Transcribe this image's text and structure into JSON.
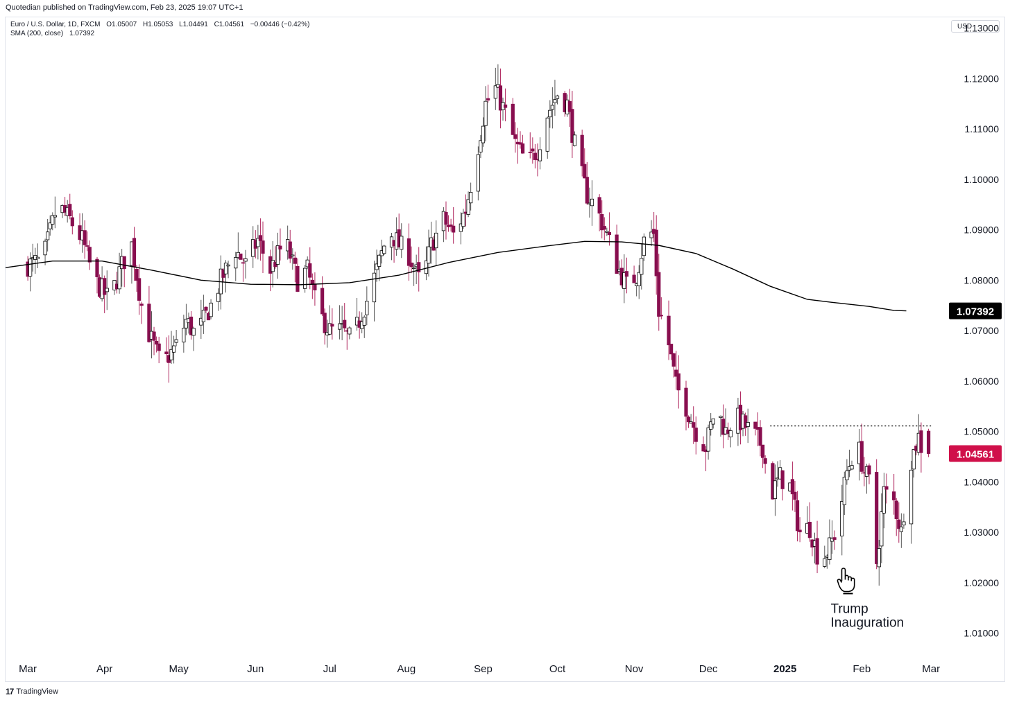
{
  "header": {
    "published": "Quotedian published on TradingView.com, Feb 23, 2025 19:07 UTC+1"
  },
  "symbol_line": {
    "name": "Euro / U.S. Dollar, 1D, FXCM",
    "open": "O1.05007",
    "high": "H1.05053",
    "low": "L1.04491",
    "close": "C1.04561",
    "change": "−0.00446 (−0.42%)"
  },
  "indicator_line": {
    "name": "SMA (200, close)",
    "value": "1.07392"
  },
  "currency_button": "USD",
  "footer": {
    "logo": "17",
    "brand": "TradingView"
  },
  "colors": {
    "up": "#ffffff",
    "down": "#880e4f",
    "wick": "#555555",
    "sma": "#000000",
    "price_label": "#d0104a",
    "sma_label": "#000000"
  },
  "chart_data": {
    "type": "candlestick",
    "series": [
      {
        "name": "Euro / U.S. Dollar"
      }
    ],
    "y_ticks": [
      "1.13000",
      "1.12000",
      "1.11000",
      "1.10000",
      "1.09000",
      "1.08000",
      "1.07000",
      "1.06000",
      "1.05000",
      "1.04000",
      "1.03000",
      "1.02000",
      "1.01000"
    ],
    "x_ticks": [
      {
        "label": "Mar",
        "day": 0
      },
      {
        "label": "Apr",
        "day": 31
      },
      {
        "label": "May",
        "day": 61
      },
      {
        "label": "Jun",
        "day": 92
      },
      {
        "label": "Jul",
        "day": 122
      },
      {
        "label": "Aug",
        "day": 153
      },
      {
        "label": "Sep",
        "day": 184
      },
      {
        "label": "Oct",
        "day": 214
      },
      {
        "label": "Nov",
        "day": 245
      },
      {
        "label": "Dec",
        "day": 275
      },
      {
        "label": "2025",
        "day": 306,
        "bold": true
      },
      {
        "label": "Feb",
        "day": 337
      },
      {
        "label": "Mar",
        "day": 365
      }
    ],
    "ylim": [
      1.005,
      1.132
    ],
    "xlim_days": [
      -9,
      370
    ],
    "ohlc_anchors": [
      [
        0,
        1.083
      ],
      [
        6,
        1.084
      ],
      [
        12,
        1.095
      ],
      [
        17,
        1.092
      ],
      [
        22,
        1.088
      ],
      [
        27,
        1.08
      ],
      [
        33,
        1.076
      ],
      [
        38,
        1.083
      ],
      [
        42,
        1.087
      ],
      [
        47,
        1.072
      ],
      [
        54,
        1.063
      ],
      [
        60,
        1.067
      ],
      [
        64,
        1.072
      ],
      [
        68,
        1.069
      ],
      [
        74,
        1.075
      ],
      [
        78,
        1.08
      ],
      [
        84,
        1.086
      ],
      [
        88,
        1.083
      ],
      [
        93,
        1.088
      ],
      [
        98,
        1.082
      ],
      [
        104,
        1.088
      ],
      [
        109,
        1.08
      ],
      [
        113,
        1.082
      ],
      [
        117,
        1.074
      ],
      [
        122,
        1.07
      ],
      [
        127,
        1.07
      ],
      [
        131,
        1.068
      ],
      [
        137,
        1.076
      ],
      [
        141,
        1.082
      ],
      [
        146,
        1.09
      ],
      [
        150,
        1.087
      ],
      [
        154,
        1.085
      ],
      [
        159,
        1.079
      ],
      [
        163,
        1.087
      ],
      [
        168,
        1.092
      ],
      [
        172,
        1.089
      ],
      [
        177,
        1.094
      ],
      [
        181,
        1.104
      ],
      [
        185,
        1.115
      ],
      [
        189,
        1.118
      ],
      [
        193,
        1.113
      ],
      [
        197,
        1.107
      ],
      [
        202,
        1.103
      ],
      [
        206,
        1.106
      ],
      [
        210,
        1.113
      ],
      [
        214,
        1.117
      ],
      [
        218,
        1.115
      ],
      [
        222,
        1.104
      ],
      [
        226,
        1.097
      ],
      [
        230,
        1.094
      ],
      [
        234,
        1.089
      ],
      [
        238,
        1.083
      ],
      [
        242,
        1.079
      ],
      [
        246,
        1.081
      ],
      [
        250,
        1.09
      ],
      [
        253,
        1.089
      ],
      [
        255,
        1.074
      ],
      [
        258,
        1.07
      ],
      [
        262,
        1.059
      ],
      [
        266,
        1.055
      ],
      [
        270,
        1.05
      ],
      [
        274,
        1.047
      ],
      [
        278,
        1.055
      ],
      [
        282,
        1.05
      ],
      [
        286,
        1.053
      ],
      [
        290,
        1.051
      ],
      [
        294,
        1.049
      ],
      [
        297,
        1.047
      ],
      [
        300,
        1.037
      ],
      [
        304,
        1.041
      ],
      [
        308,
        1.039
      ],
      [
        312,
        1.03
      ],
      [
        316,
        1.031
      ],
      [
        320,
        1.024
      ],
      [
        324,
        1.027
      ],
      [
        327,
        1.031
      ],
      [
        331,
        1.042
      ],
      [
        335,
        1.048
      ],
      [
        338,
        1.042
      ],
      [
        341,
        1.039
      ],
      [
        343,
        1.024
      ],
      [
        346,
        1.038
      ],
      [
        350,
        1.036
      ],
      [
        353,
        1.03
      ],
      [
        356,
        1.043
      ],
      [
        360,
        1.049
      ],
      [
        362,
        1.045
      ],
      [
        364,
        1.0456
      ]
    ],
    "sma_200": [
      [
        -9,
        1.0825
      ],
      [
        10,
        1.0838
      ],
      [
        30,
        1.0838
      ],
      [
        50,
        1.082
      ],
      [
        70,
        1.08
      ],
      [
        90,
        1.0792
      ],
      [
        110,
        1.0791
      ],
      [
        130,
        1.0795
      ],
      [
        150,
        1.081
      ],
      [
        170,
        1.0835
      ],
      [
        190,
        1.0855
      ],
      [
        210,
        1.0868
      ],
      [
        225,
        1.0877
      ],
      [
        240,
        1.0876
      ],
      [
        255,
        1.0869
      ],
      [
        270,
        1.0853
      ],
      [
        285,
        1.0822
      ],
      [
        300,
        1.0788
      ],
      [
        315,
        1.0762
      ],
      [
        325,
        1.0756
      ],
      [
        340,
        1.0748
      ],
      [
        350,
        1.074
      ],
      [
        355,
        1.07392
      ]
    ],
    "resistance_level": {
      "value": 1.0511,
      "from_day": 300,
      "to_day": 365
    },
    "annotation": {
      "text_line1": "Trump",
      "text_line2": "Inauguration",
      "day": 325,
      "price": 1.0195
    },
    "last_price": {
      "value": 1.04561,
      "label": "1.04561"
    },
    "sma_label": {
      "value": 1.07392,
      "label": "1.07392"
    }
  }
}
